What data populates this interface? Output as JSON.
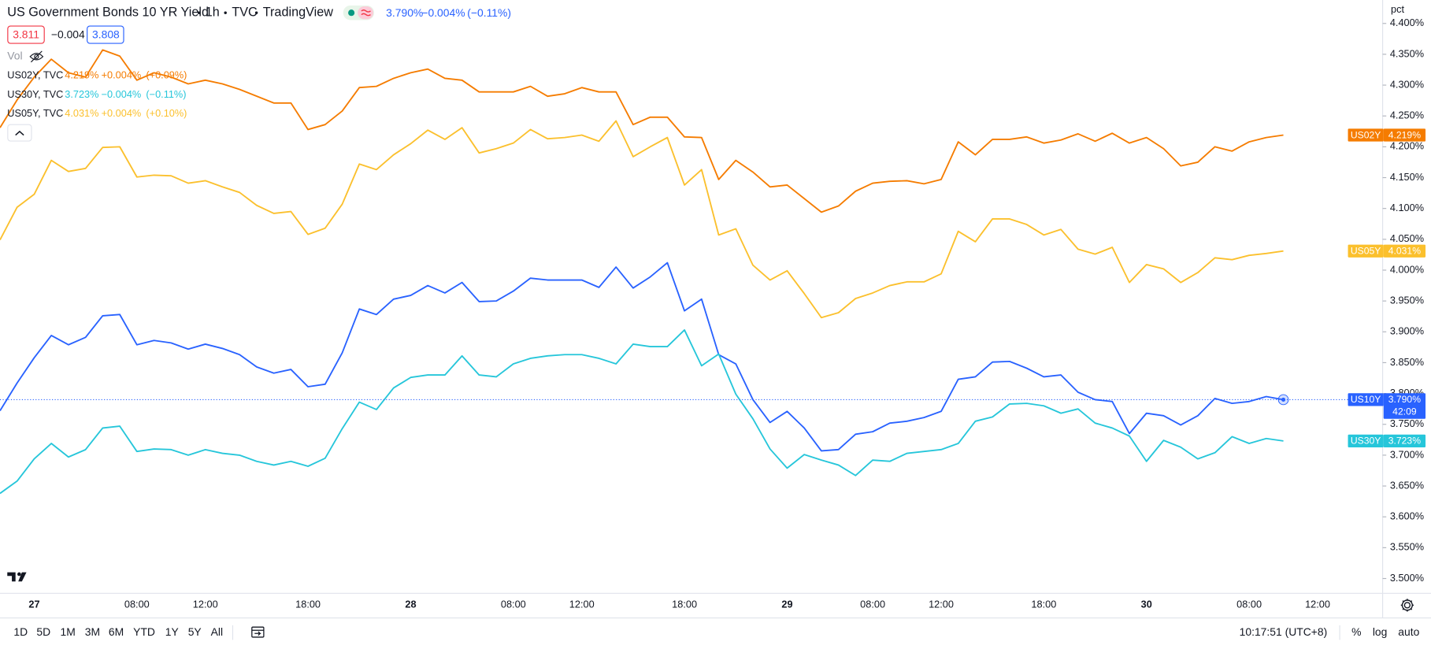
{
  "chart_data": {
    "type": "line",
    "title": "US Government Bonds 10 YR Yield",
    "y_label": "pct",
    "categories": [
      null,
      null,
      "27",
      null,
      null,
      null,
      null,
      null,
      "08:00",
      null,
      null,
      null,
      "12:00",
      null,
      null,
      null,
      null,
      null,
      "18:00",
      null,
      null,
      null,
      null,
      null,
      "28",
      null,
      null,
      null,
      null,
      null,
      "08:00",
      null,
      null,
      null,
      "12:00",
      null,
      null,
      null,
      null,
      null,
      "18:00",
      null,
      null,
      null,
      null,
      null,
      "29",
      null,
      null,
      null,
      null,
      "08:00",
      null,
      null,
      null,
      "12:00",
      null,
      null,
      null,
      null,
      null,
      "18:00",
      null,
      null,
      null,
      null,
      null,
      "30",
      null,
      null,
      null,
      null,
      null,
      "08:00",
      null,
      null,
      null,
      "12:00"
    ],
    "series": [
      {
        "name": "US02Y",
        "color": "#f57c00",
        "last_label": "4.219%",
        "values": [
          4.231,
          4.276,
          4.313,
          4.342,
          4.32,
          4.313,
          4.357,
          4.347,
          4.308,
          4.32,
          4.313,
          4.302,
          4.308,
          4.302,
          4.293,
          4.282,
          4.271,
          4.271,
          4.228,
          4.236,
          4.258,
          4.296,
          4.298,
          4.311,
          4.32,
          4.326,
          4.311,
          4.308,
          4.289,
          4.289,
          4.289,
          4.298,
          4.282,
          4.286,
          4.296,
          4.289,
          4.289,
          4.236,
          4.248,
          4.248,
          4.216,
          4.215,
          4.147,
          4.178,
          4.159,
          4.135,
          4.138,
          4.116,
          4.094,
          4.104,
          4.128,
          4.141,
          4.144,
          4.145,
          4.14,
          4.147,
          4.208,
          4.187,
          4.212,
          4.212,
          4.216,
          4.206,
          4.211,
          4.221,
          4.209,
          4.222,
          4.206,
          4.215,
          4.197,
          4.169,
          4.175,
          4.2,
          4.193,
          4.208,
          4.215,
          4.219,
          null,
          null
        ]
      },
      {
        "name": "US05Y",
        "color": "#fbc02d",
        "last_label": "4.031%",
        "values": [
          4.049,
          4.102,
          4.123,
          4.178,
          4.16,
          4.165,
          4.199,
          4.2,
          4.151,
          4.154,
          4.153,
          4.141,
          4.145,
          4.135,
          4.126,
          4.105,
          4.092,
          4.095,
          4.058,
          4.068,
          4.107,
          4.172,
          4.163,
          4.187,
          4.205,
          4.227,
          4.212,
          4.231,
          4.19,
          4.197,
          4.206,
          4.228,
          4.213,
          4.215,
          4.219,
          4.209,
          4.242,
          4.184,
          4.2,
          4.215,
          4.138,
          4.163,
          4.057,
          4.067,
          4.008,
          3.984,
          3.999,
          3.962,
          3.923,
          3.931,
          3.954,
          3.963,
          3.975,
          3.981,
          3.981,
          3.994,
          4.063,
          4.046,
          4.083,
          4.083,
          4.074,
          4.057,
          4.066,
          4.034,
          4.026,
          4.037,
          3.98,
          4.009,
          4.002,
          3.98,
          3.996,
          4.02,
          4.017,
          4.024,
          4.027,
          4.031,
          null,
          null
        ]
      },
      {
        "name": "US10Y",
        "color": "#2962ff",
        "last_label": "3.790%",
        "countdown": "42:09",
        "values": [
          3.772,
          3.817,
          3.858,
          3.894,
          3.879,
          3.891,
          3.926,
          3.928,
          3.879,
          3.886,
          3.882,
          3.872,
          3.88,
          3.873,
          3.863,
          3.843,
          3.833,
          3.839,
          3.811,
          3.815,
          3.866,
          3.937,
          3.928,
          3.953,
          3.959,
          3.975,
          3.963,
          3.98,
          3.949,
          3.95,
          3.966,
          3.987,
          3.984,
          3.984,
          3.984,
          3.972,
          4.005,
          3.971,
          3.989,
          4.012,
          3.934,
          3.953,
          3.863,
          3.848,
          3.79,
          3.753,
          3.771,
          3.744,
          3.707,
          3.709,
          3.734,
          3.738,
          3.752,
          3.755,
          3.761,
          3.771,
          3.823,
          3.827,
          3.851,
          3.852,
          3.841,
          3.827,
          3.83,
          3.802,
          3.79,
          3.787,
          3.735,
          3.768,
          3.764,
          3.749,
          3.764,
          3.792,
          3.784,
          3.787,
          3.795,
          3.79,
          null,
          null
        ]
      },
      {
        "name": "US30Y",
        "color": "#26c6da",
        "last_label": "3.723%",
        "values": [
          3.638,
          3.658,
          3.694,
          3.719,
          3.697,
          3.709,
          3.744,
          3.747,
          3.706,
          3.71,
          3.709,
          3.7,
          3.709,
          3.703,
          3.7,
          3.69,
          3.684,
          3.69,
          3.682,
          3.695,
          3.743,
          3.786,
          3.774,
          3.809,
          3.826,
          3.83,
          3.83,
          3.861,
          3.83,
          3.827,
          3.848,
          3.857,
          3.861,
          3.863,
          3.863,
          3.857,
          3.848,
          3.88,
          3.876,
          3.876,
          3.903,
          3.845,
          3.864,
          3.799,
          3.759,
          3.71,
          3.679,
          3.701,
          3.692,
          3.684,
          3.667,
          3.692,
          3.69,
          3.703,
          3.706,
          3.709,
          3.719,
          3.755,
          3.762,
          3.783,
          3.784,
          3.78,
          3.768,
          3.775,
          3.752,
          3.744,
          3.731,
          3.69,
          3.724,
          3.713,
          3.694,
          3.704,
          3.73,
          3.719,
          3.727,
          3.723,
          null,
          null
        ]
      }
    ],
    "ylim": [
      3.476,
      4.438
    ],
    "yticks": [
      {
        "value": 3.5,
        "label": "3.500%"
      },
      {
        "value": 3.55,
        "label": "3.550%"
      },
      {
        "value": 3.6,
        "label": "3.600%"
      },
      {
        "value": 3.65,
        "label": "3.650%"
      },
      {
        "value": 3.7,
        "label": "3.700%"
      },
      {
        "value": 3.75,
        "label": "3.750%"
      },
      {
        "value": 3.8,
        "label": "3.800%"
      },
      {
        "value": 3.85,
        "label": "3.850%"
      },
      {
        "value": 3.9,
        "label": "3.900%"
      },
      {
        "value": 3.95,
        "label": "3.950%"
      },
      {
        "value": 4.0,
        "label": "4.000%"
      },
      {
        "value": 4.05,
        "label": "4.050%"
      },
      {
        "value": 4.1,
        "label": "4.100%"
      },
      {
        "value": 4.15,
        "label": "4.150%"
      },
      {
        "value": 4.2,
        "label": "4.200%"
      },
      {
        "value": 4.25,
        "label": "4.250%"
      },
      {
        "value": 4.3,
        "label": "4.300%"
      },
      {
        "value": 4.35,
        "label": "4.350%"
      },
      {
        "value": 4.4,
        "label": "4.400%"
      }
    ],
    "grid": false,
    "log": false,
    "main_series": 2
  },
  "header": {
    "interval": "1h",
    "exchange": "TVC",
    "source": "TradingView",
    "last": "3.790%",
    "change": "−0.004%",
    "change_pct": "(−0.11%)",
    "bid": "3.811",
    "spread": "−0.004",
    "ask": "3.808",
    "vol": "Vol"
  },
  "legend": [
    {
      "label": "US02Y, TVC",
      "last": "4.219%",
      "change": "+0.004%",
      "pct": "(+0.09%)",
      "color": "#f57c00"
    },
    {
      "label": "US30Y, TVC",
      "last": "3.723%",
      "change": "−0.004%",
      "pct": "(−0.11%)",
      "color": "#26c6da"
    },
    {
      "label": "US05Y, TVC",
      "last": "4.031%",
      "change": "+0.004%",
      "pct": "(+0.10%)",
      "color": "#fbc02d"
    }
  ],
  "toolbar": {
    "ranges": [
      "1D",
      "5D",
      "1M",
      "3M",
      "6M",
      "YTD",
      "1Y",
      "5Y",
      "All"
    ],
    "clock": "10:17:51 (UTC+8)",
    "options": [
      "%",
      "log",
      "auto"
    ]
  }
}
